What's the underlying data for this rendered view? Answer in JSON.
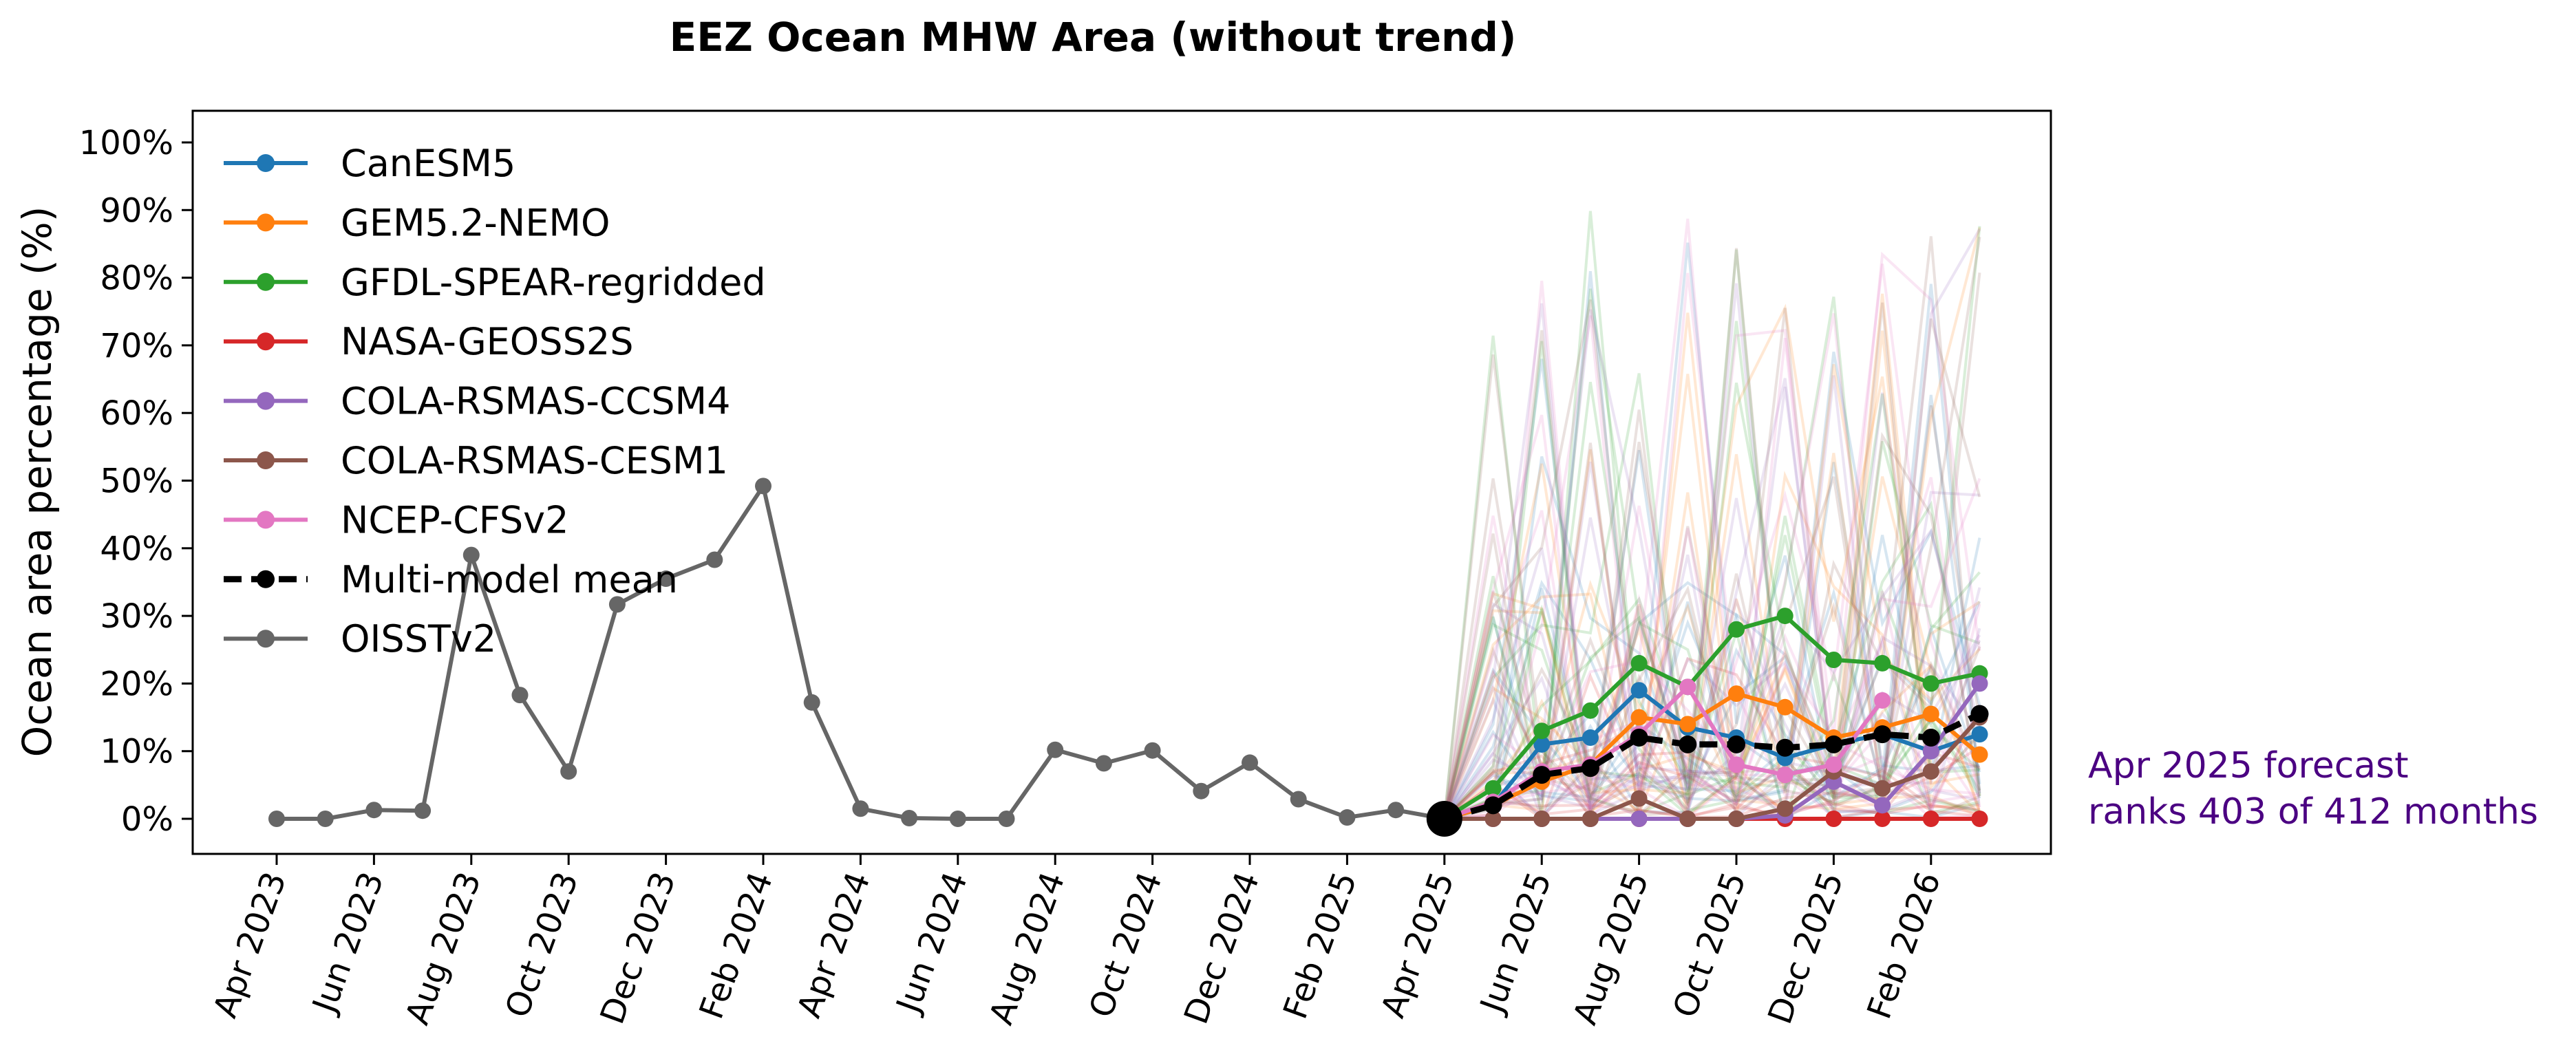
{
  "chart_data": {
    "type": "line",
    "title": "EEZ Ocean MHW Area (without trend)",
    "xlabel": "",
    "ylabel": "Ocean area percentage (%)",
    "ylim": [
      0,
      100
    ],
    "yticks": [
      "0%",
      "10%",
      "20%",
      "30%",
      "40%",
      "50%",
      "60%",
      "70%",
      "80%",
      "90%",
      "100%"
    ],
    "xticks": [
      "Apr 2023",
      "Jun 2023",
      "Aug 2023",
      "Oct 2023",
      "Dec 2023",
      "Feb 2024",
      "Apr 2024",
      "Jun 2024",
      "Aug 2024",
      "Oct 2024",
      "Dec 2024",
      "Feb 2025",
      "Apr 2025",
      "Jun 2025",
      "Aug 2025",
      "Oct 2025",
      "Dec 2025",
      "Feb 2026"
    ],
    "legend_position": "upper-left",
    "grid": false,
    "observed": {
      "name": "OISSTv2",
      "color": "#666666",
      "x": [
        "Apr 2023",
        "May 2023",
        "Jun 2023",
        "Jul 2023",
        "Aug 2023",
        "Sep 2023",
        "Oct 2023",
        "Nov 2023",
        "Dec 2023",
        "Jan 2024",
        "Feb 2024",
        "Mar 2024",
        "Apr 2024",
        "May 2024",
        "Jun 2024",
        "Jul 2024",
        "Aug 2024",
        "Sep 2024",
        "Oct 2024",
        "Nov 2024",
        "Dec 2024",
        "Jan 2025",
        "Feb 2025",
        "Mar 2025",
        "Apr 2025"
      ],
      "values": [
        0,
        0,
        1.3,
        1.2,
        39,
        18.3,
        7,
        31.7,
        35.5,
        38.3,
        49.2,
        17.2,
        1.5,
        0.1,
        0,
        0,
        10.2,
        8.2,
        10.1,
        4.1,
        8.3,
        2.9,
        0.2,
        1.3,
        0
      ]
    },
    "forecast_x": [
      "Apr 2025",
      "May 2025",
      "Jun 2025",
      "Jul 2025",
      "Aug 2025",
      "Sep 2025",
      "Oct 2025",
      "Nov 2025",
      "Dec 2025",
      "Jan 2026",
      "Feb 2026",
      "Mar 2026"
    ],
    "series": [
      {
        "name": "CanESM5",
        "color": "#1f77b4",
        "values": [
          0,
          2,
          11,
          12,
          19,
          13.5,
          12,
          9,
          11,
          12.5,
          10,
          12.5
        ]
      },
      {
        "name": "GEM5.2-NEMO",
        "color": "#ff7f0e",
        "values": [
          0,
          2,
          5.5,
          8,
          15,
          14,
          18.5,
          16.5,
          12,
          13.5,
          15.5,
          9.5
        ]
      },
      {
        "name": "GFDL-SPEAR-regridded",
        "color": "#2ca02c",
        "values": [
          0,
          4.5,
          13,
          16,
          23,
          19.5,
          28,
          30,
          23.5,
          23,
          20,
          21.5
        ]
      },
      {
        "name": "NASA-GEOSS2S",
        "color": "#d62728",
        "values": [
          0,
          0,
          0,
          0,
          0,
          0,
          0,
          0,
          0,
          0,
          0,
          0
        ]
      },
      {
        "name": "COLA-RSMAS-CCSM4",
        "color": "#9467bd",
        "values": [
          0,
          0,
          0,
          0,
          0,
          0,
          0,
          0.5,
          5.5,
          2,
          10,
          20
        ]
      },
      {
        "name": "COLA-RSMAS-CESM1",
        "color": "#8c564b",
        "values": [
          0,
          0,
          0,
          0,
          3,
          0,
          0,
          1.5,
          7,
          4.5,
          7,
          15
        ]
      },
      {
        "name": "NCEP-CFSv2",
        "color": "#e377c2",
        "values": [
          0,
          2.5,
          7,
          8,
          12.5,
          19.5,
          8,
          6.5,
          8,
          17.5
        ]
      },
      {
        "name": "Multi-model mean",
        "color": "#000000",
        "dashed": true,
        "values": [
          0,
          2,
          6.5,
          7.5,
          12,
          11,
          11,
          10.5,
          11,
          12.5,
          12,
          15.5
        ]
      }
    ]
  },
  "annotation": {
    "line1": "Apr 2025 forecast",
    "line2": "ranks 403 of 412 months",
    "color": "#4b0082"
  }
}
